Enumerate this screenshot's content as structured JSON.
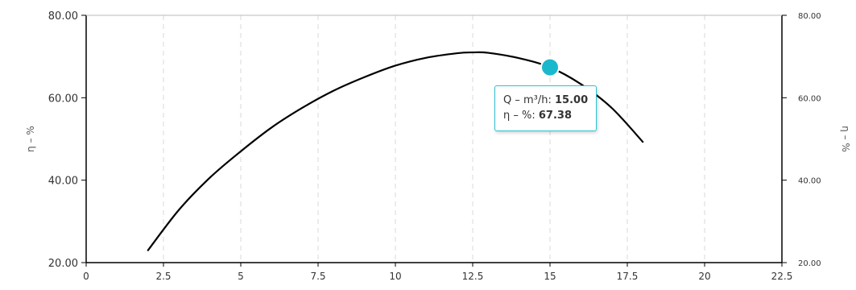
{
  "chart_data": {
    "type": "line",
    "xlim": [
      0,
      22.5
    ],
    "ylim": [
      20,
      80
    ],
    "x_ticks": [
      "0",
      "2.5",
      "5",
      "7.5",
      "10",
      "12.5",
      "15",
      "17.5",
      "20",
      "22.5"
    ],
    "x_tick_values": [
      0,
      2.5,
      5,
      7.5,
      10,
      12.5,
      15,
      17.5,
      20,
      22.5
    ],
    "y_ticks": [
      "20.00",
      "40.00",
      "60.00",
      "80.00"
    ],
    "y_tick_values": [
      20,
      40,
      60,
      80
    ],
    "ylabel_left": "η – %",
    "ylabel_right": "η – %",
    "grid": {
      "vertical": true,
      "horizontal": false,
      "style": "dashed"
    },
    "series": [
      {
        "x": [
          2,
          3,
          4,
          5,
          6,
          7,
          8,
          9,
          10,
          11,
          12,
          12.5,
          13,
          14,
          15,
          16,
          17,
          18
        ],
        "y": [
          23.0,
          32.8,
          40.6,
          47.0,
          52.8,
          57.6,
          61.7,
          65.0,
          67.8,
          69.7,
          70.8,
          71.0,
          70.9,
          69.6,
          67.38,
          63.3,
          57.5,
          49.3
        ]
      }
    ],
    "highlight": {
      "x": 15,
      "y": 67.38
    },
    "tooltip": {
      "x_label": "Q – m³/h: ",
      "x_value": "15.00",
      "y_label": "η – %: ",
      "y_value": "67.38"
    },
    "colors": {
      "line": "#000000",
      "marker": "#1ab8cc",
      "marker_border": "#ffffff",
      "tooltip_border": "#2cc3d3",
      "grid": "#d9d9d9",
      "axis": "#000000"
    }
  }
}
